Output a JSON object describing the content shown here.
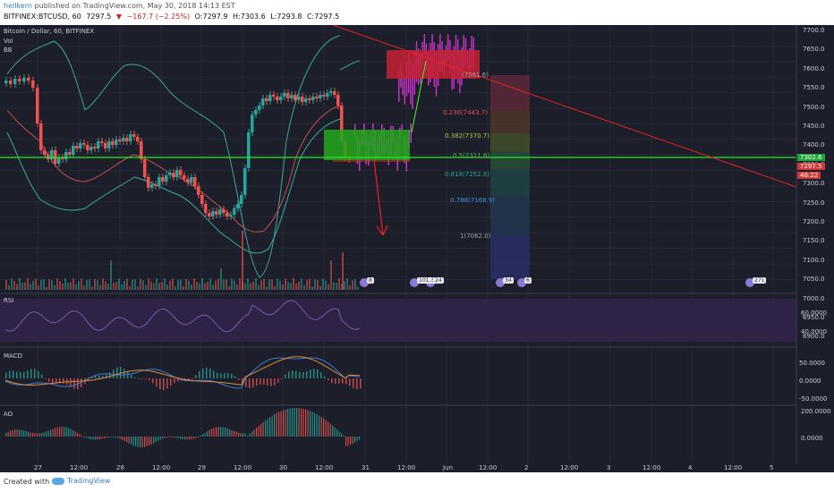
{
  "header": {
    "user": "hellkern",
    "published_text": "published on TradingView.com, May 30, 2018 14:13 EST",
    "symbol": "BITFINEX:BTCUSD, 60",
    "last": "7297.5",
    "change": "−167.7 (−2.25%)",
    "open": "O:7297.9",
    "high": "H:7303.6",
    "low": "L:7293.8",
    "close": "C:7297.5"
  },
  "legend": {
    "title": "Bitcoin / Dollar, 60, BITFINEX",
    "vol": "Vol",
    "bb": "BB"
  },
  "panes": {
    "rsi": "RSI",
    "macd": "MACD",
    "ao": "AO"
  },
  "price_axis": [
    "7700.0",
    "7650.0",
    "7600.0",
    "7550.0",
    "7500.0",
    "7450.0",
    "7400.0",
    "7350.0",
    "7300.0",
    "7250.0",
    "7200.0",
    "7150.0",
    "7100.0",
    "7050.0",
    "7000.0",
    "6950.0",
    "6900.0"
  ],
  "price_badges": [
    {
      "text": "7302.6",
      "color": "#1fa43a"
    },
    {
      "text": "7297.5",
      "color": "#d23a3a"
    },
    {
      "text": "46:22",
      "color": "#d23a3a"
    }
  ],
  "rsi_axis": [
    "60.0000",
    "40.0000"
  ],
  "macd_axis": [
    "50.0000",
    "0.0000",
    "-50.0000"
  ],
  "ao_axis": [
    "200.0000",
    "0.0000"
  ],
  "time_axis": [
    "27",
    "12:00",
    "28",
    "12:00",
    "29",
    "12:00",
    "30",
    "12:00",
    "31",
    "12:00",
    "Jun",
    "12:00",
    "2",
    "12:00",
    "3",
    "12:00",
    "4",
    "12:00",
    "5"
  ],
  "fib_levels": [
    {
      "text": "(7561.6)",
      "color": "#9aa0a6"
    },
    {
      "text": "0.236(7443.7)",
      "color": "#e05050"
    },
    {
      "text": "0.382(7370.7)",
      "color": "#b5c93a"
    },
    {
      "text": "0.5(7311.8)",
      "color": "#4caf50"
    },
    {
      "text": "0.618(7252.8)",
      "color": "#26a69a"
    },
    {
      "text": "0.786(7168.9)",
      "color": "#3f8fd6"
    },
    {
      "text": "1(7062.0)",
      "color": "#9aa0a6"
    }
  ],
  "event_badges": [
    "8",
    "101.3",
    "24",
    "34",
    "6",
    "271"
  ],
  "footer": {
    "created": "Created with",
    "brand": "TradingView"
  },
  "colors": {
    "background": "#1c1f2a",
    "grid": "#262a36",
    "up": "#26a69a",
    "down": "#ef5350",
    "bollinger": "#3aa99f",
    "support_line": "#22ee22",
    "trend_line": "#ee2222",
    "projection": "#cc33cc"
  }
}
